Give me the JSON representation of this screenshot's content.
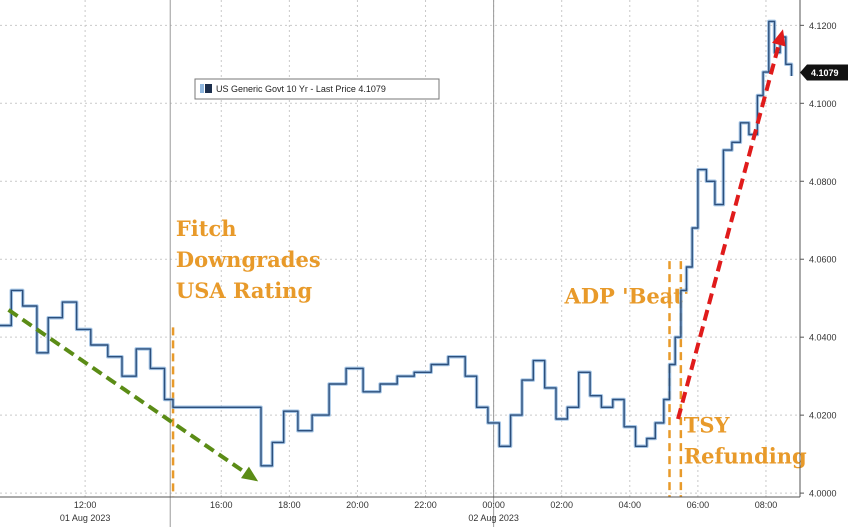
{
  "chart_data": {
    "type": "line",
    "title": "",
    "xlabel": "",
    "ylabel": "",
    "ylim": [
      3.999,
      4.1265
    ],
    "xlim": [
      "2023-08-01 09:30",
      "2023-08-02 09:00"
    ],
    "grid": true,
    "legend": {
      "label": "US Generic Govt 10 Yr - Last Price 4.1079",
      "placement": "top-left"
    },
    "last_price": {
      "label": "4.1079",
      "value": 4.1079
    },
    "y_ticks": [
      {
        "label": "4.0000",
        "value": 4.0
      },
      {
        "label": "4.0200",
        "value": 4.02
      },
      {
        "label": "4.0400",
        "value": 4.04
      },
      {
        "label": "4.0600",
        "value": 4.06
      },
      {
        "label": "4.0800",
        "value": 4.08
      },
      {
        "label": "4.1000",
        "value": 4.1
      },
      {
        "label": "4.1200",
        "value": 4.12
      }
    ],
    "x_ticks": [
      {
        "label": "12:00",
        "x": "2023-08-01 12:00"
      },
      {
        "label": "16:00",
        "x": "2023-08-01 16:00"
      },
      {
        "label": "18:00",
        "x": "2023-08-01 18:00"
      },
      {
        "label": "20:00",
        "x": "2023-08-01 20:00"
      },
      {
        "label": "22:00",
        "x": "2023-08-01 22:00"
      },
      {
        "label": "00:00",
        "x": "2023-08-02 00:00"
      },
      {
        "label": "02:00",
        "x": "2023-08-02 02:00"
      },
      {
        "label": "04:00",
        "x": "2023-08-02 04:00"
      },
      {
        "label": "06:00",
        "x": "2023-08-02 06:00"
      },
      {
        "label": "08:00",
        "x": "2023-08-02 08:00"
      }
    ],
    "date_labels": [
      {
        "label": "01 Aug 2023",
        "x": "2023-08-01 12:00"
      },
      {
        "label": "02 Aug 2023",
        "x": "2023-08-02 00:00"
      }
    ],
    "separators": [
      "2023-08-01 14:30",
      "2023-08-02 00:00"
    ],
    "series": [
      {
        "color": "#2c4f7c",
        "x": [
          "2023-08-01 09:30",
          "2023-08-01 09:50",
          "2023-08-01 10:10",
          "2023-08-01 10:35",
          "2023-08-01 10:55",
          "2023-08-01 11:20",
          "2023-08-01 11:45",
          "2023-08-01 12:10",
          "2023-08-01 12:40",
          "2023-08-01 13:05",
          "2023-08-01 13:30",
          "2023-08-01 13:55",
          "2023-08-01 14:20",
          "2023-08-01 14:35",
          "2023-08-01 17:10",
          "2023-08-01 17:30",
          "2023-08-01 17:50",
          "2023-08-01 18:15",
          "2023-08-01 18:40",
          "2023-08-01 19:10",
          "2023-08-01 19:40",
          "2023-08-01 20:10",
          "2023-08-01 20:40",
          "2023-08-01 21:10",
          "2023-08-01 21:40",
          "2023-08-01 22:10",
          "2023-08-01 22:40",
          "2023-08-01 23:10",
          "2023-08-01 23:30",
          "2023-08-01 23:50",
          "2023-08-02 00:10",
          "2023-08-02 00:30",
          "2023-08-02 00:50",
          "2023-08-02 01:10",
          "2023-08-02 01:30",
          "2023-08-02 01:50",
          "2023-08-02 02:10",
          "2023-08-02 02:30",
          "2023-08-02 02:50",
          "2023-08-02 03:10",
          "2023-08-02 03:30",
          "2023-08-02 03:50",
          "2023-08-02 04:10",
          "2023-08-02 04:30",
          "2023-08-02 04:45",
          "2023-08-02 05:00",
          "2023-08-02 05:10",
          "2023-08-02 05:20",
          "2023-08-02 05:30",
          "2023-08-02 05:40",
          "2023-08-02 05:50",
          "2023-08-02 06:00",
          "2023-08-02 06:15",
          "2023-08-02 06:30",
          "2023-08-02 06:45",
          "2023-08-02 07:00",
          "2023-08-02 07:15",
          "2023-08-02 07:30",
          "2023-08-02 07:45",
          "2023-08-02 07:55",
          "2023-08-02 08:05",
          "2023-08-02 08:15",
          "2023-08-02 08:25",
          "2023-08-02 08:35",
          "2023-08-02 08:45"
        ],
        "y": [
          4.043,
          4.052,
          4.048,
          4.036,
          4.045,
          4.049,
          4.042,
          4.038,
          4.035,
          4.03,
          4.037,
          4.032,
          4.024,
          4.022,
          4.007,
          4.013,
          4.021,
          4.016,
          4.02,
          4.028,
          4.032,
          4.026,
          4.028,
          4.03,
          4.031,
          4.033,
          4.035,
          4.03,
          4.022,
          4.018,
          4.012,
          4.02,
          4.029,
          4.034,
          4.027,
          4.019,
          4.022,
          4.031,
          4.025,
          4.022,
          4.024,
          4.017,
          4.012,
          4.014,
          4.018,
          4.024,
          4.033,
          4.04,
          4.052,
          4.058,
          4.068,
          4.083,
          4.08,
          4.074,
          4.088,
          4.09,
          4.095,
          4.092,
          4.102,
          4.108,
          4.121,
          4.113,
          4.117,
          4.11,
          4.107
        ]
      }
    ],
    "arrows": [
      {
        "color": "#5b8c16",
        "from": {
          "x": "2023-08-01 09:45",
          "y": 4.047
        },
        "to": {
          "x": "2023-08-01 17:05",
          "y": 4.003
        }
      },
      {
        "color": "#e01b1b",
        "from": {
          "x": "2023-08-02 05:25",
          "y": 4.019
        },
        "to": {
          "x": "2023-08-02 08:30",
          "y": 4.119
        }
      }
    ],
    "event_lines": [
      {
        "x": "2023-08-01 14:35",
        "y_top": 4.0425,
        "color": "#e89a2a"
      },
      {
        "x": "2023-08-02 05:10",
        "y_top": 4.0595,
        "color": "#e89a2a"
      },
      {
        "x": "2023-08-02 05:30",
        "y_top": 4.0595,
        "color": "#e89a2a"
      }
    ],
    "annotations": [
      {
        "lines": [
          "Fitch",
          "Downgrades",
          "USA Rating"
        ],
        "x": "2023-08-01 14:40",
        "y": 4.066,
        "color": "#e89a2a"
      },
      {
        "lines": [
          "ADP 'Beat'"
        ],
        "x": "2023-08-02 02:05",
        "y": 4.0487,
        "color": "#e89a2a"
      },
      {
        "lines": [
          "TSY",
          "Refunding"
        ],
        "x": "2023-08-02 05:35",
        "y": 4.0155,
        "color": "#e89a2a"
      }
    ]
  }
}
